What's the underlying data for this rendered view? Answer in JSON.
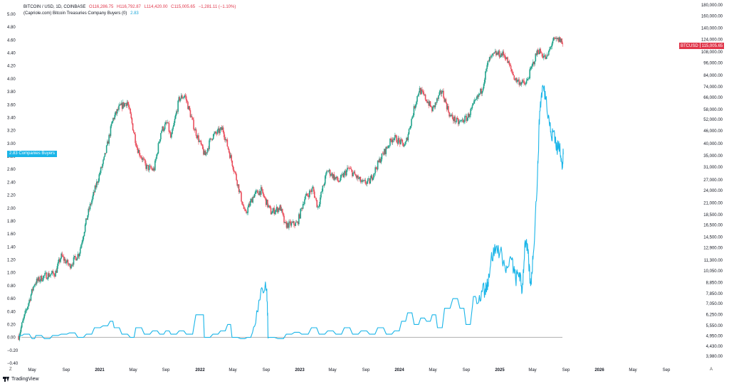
{
  "header": {
    "symbol": "BITCOIN / USD, 1D, COINBASE",
    "open": "O116,286.75",
    "high": "H116,792.87",
    "low": "L114,420.00",
    "close": "C115,005.65",
    "change": "−1,281.11 (−1.10%)",
    "indicator_name": "(Capriole.com) Bitcoin Treasuries Company Buyers (0)",
    "indicator_value": "2.83"
  },
  "tags": {
    "indicator_value": "2.83",
    "indicator_label": "Companies Buyers",
    "price_symbol": "BTCUSD",
    "price_value": "115,005.65"
  },
  "footer": {
    "brand": "TradingView"
  },
  "corners": {
    "left_bottom": "Z",
    "right_bottom": "A"
  },
  "colors": {
    "up": "#22a38c",
    "down": "#ea4d5c",
    "indicator": "#1ab5e8",
    "zero_line": "#999999"
  },
  "chart_data": {
    "type": "line",
    "x_labels": [
      "May",
      "Sep",
      "2021",
      "May",
      "Sep",
      "2022",
      "May",
      "Sep",
      "2023",
      "May",
      "Sep",
      "2024",
      "May",
      "Sep",
      "2025",
      "May",
      "Sep",
      "2026",
      "May",
      "Sep"
    ],
    "x_label_bold": [
      false,
      false,
      true,
      false,
      false,
      true,
      false,
      false,
      true,
      false,
      false,
      true,
      false,
      false,
      true,
      false,
      false,
      true,
      false,
      false
    ],
    "left_axis": {
      "label": "",
      "ylim": [
        -0.4,
        5.0
      ],
      "ticks": [
        "5.00",
        "4.80",
        "4.60",
        "4.40",
        "4.20",
        "4.00",
        "3.80",
        "3.60",
        "3.40",
        "3.20",
        "3.00",
        "2.80",
        "2.60",
        "2.40",
        "2.20",
        "2.00",
        "1.80",
        "1.60",
        "1.40",
        "1.20",
        "1.00",
        "0.80",
        "0.60",
        "0.40",
        "0.20",
        "0.00",
        "−0.20",
        "−0.40"
      ]
    },
    "right_axis": {
      "scale": "log",
      "ticks": [
        "180,000.00",
        "160,000.00",
        "140,000.00",
        "124,000.00",
        "108,000.00",
        "96,000.00",
        "84,000.00",
        "74,000.00",
        "66,000.00",
        "58,000.00",
        "52,000.00",
        "46,000.00",
        "40,000.00",
        "35,000.00",
        "31,000.00",
        "27,000.00",
        "24,000.00",
        "21,000.00",
        "18,500.00",
        "16,500.00",
        "14,500.00",
        "12,900.00",
        "11,300.00",
        "10,050.00",
        "8,850.00",
        "7,850.00",
        "7,050.00",
        "6,250.00",
        "5,550.00",
        "4,950.00",
        "4,430.00",
        "3,980.00"
      ]
    },
    "series": [
      {
        "name": "BTCUSD",
        "axis": "right",
        "style": "candles",
        "points": [
          [
            "2020-03-13",
            4950
          ],
          [
            "2020-04-15",
            6900
          ],
          [
            "2020-05-10",
            8800
          ],
          [
            "2020-06-15",
            9500
          ],
          [
            "2020-07-25",
            9800
          ],
          [
            "2020-08-15",
            11800
          ],
          [
            "2020-09-15",
            10600
          ],
          [
            "2020-10-20",
            12200
          ],
          [
            "2020-11-20",
            18500
          ],
          [
            "2020-12-25",
            26500
          ],
          [
            "2021-01-20",
            34000
          ],
          [
            "2021-02-20",
            52000
          ],
          [
            "2021-03-15",
            59000
          ],
          [
            "2021-04-14",
            63000
          ],
          [
            "2021-05-20",
            38000
          ],
          [
            "2021-06-22",
            31000
          ],
          [
            "2021-07-20",
            30000
          ],
          [
            "2021-08-15",
            46000
          ],
          [
            "2021-09-07",
            50000
          ],
          [
            "2021-09-20",
            42000
          ],
          [
            "2021-10-20",
            65000
          ],
          [
            "2021-11-10",
            67500
          ],
          [
            "2021-12-15",
            47000
          ],
          [
            "2022-01-22",
            35000
          ],
          [
            "2022-02-15",
            43000
          ],
          [
            "2022-03-28",
            47000
          ],
          [
            "2022-05-12",
            29000
          ],
          [
            "2022-06-18",
            18500
          ],
          [
            "2022-07-20",
            23000
          ],
          [
            "2022-08-15",
            24000
          ],
          [
            "2022-09-20",
            19000
          ],
          [
            "2022-10-25",
            20000
          ],
          [
            "2022-11-10",
            16500
          ],
          [
            "2022-12-25",
            16800
          ],
          [
            "2023-01-20",
            22000
          ],
          [
            "2023-02-20",
            24500
          ],
          [
            "2023-03-10",
            20000
          ],
          [
            "2023-04-14",
            30000
          ],
          [
            "2023-05-25",
            26500
          ],
          [
            "2023-06-30",
            30500
          ],
          [
            "2023-08-20",
            26000
          ],
          [
            "2023-09-15",
            26500
          ],
          [
            "2023-10-25",
            34000
          ],
          [
            "2023-12-10",
            43000
          ],
          [
            "2024-01-23",
            39000
          ],
          [
            "2024-02-28",
            61000
          ],
          [
            "2024-03-14",
            72000
          ],
          [
            "2024-04-15",
            63000
          ],
          [
            "2024-05-01",
            57500
          ],
          [
            "2024-06-05",
            71000
          ],
          [
            "2024-07-05",
            54000
          ],
          [
            "2024-08-05",
            50000
          ],
          [
            "2024-09-06",
            53000
          ],
          [
            "2024-10-29",
            72000
          ],
          [
            "2024-11-22",
            98000
          ],
          [
            "2024-12-17",
            106000
          ],
          [
            "2025-01-20",
            105000
          ],
          [
            "2025-02-28",
            80000
          ],
          [
            "2025-04-07",
            76000
          ],
          [
            "2025-05-22",
            111000
          ],
          [
            "2025-06-22",
            100000
          ],
          [
            "2025-07-14",
            122000
          ],
          [
            "2025-08-13",
            123500
          ],
          [
            "2025-08-22",
            115005.65
          ]
        ]
      },
      {
        "name": "Companies Buyers",
        "axis": "left",
        "style": "line",
        "points": [
          [
            "2020-03-13",
            0.03
          ],
          [
            "2020-04-01",
            0.05
          ],
          [
            "2020-05-01",
            -0.02
          ],
          [
            "2020-05-15",
            0.03
          ],
          [
            "2020-06-15",
            -0.02
          ],
          [
            "2020-07-15",
            0.03
          ],
          [
            "2020-08-15",
            0.05
          ],
          [
            "2020-09-15",
            0.07
          ],
          [
            "2020-10-15",
            0.0
          ],
          [
            "2020-11-15",
            0.05
          ],
          [
            "2020-12-15",
            0.15
          ],
          [
            "2021-01-15",
            0.18
          ],
          [
            "2021-02-10",
            0.25
          ],
          [
            "2021-02-25",
            0.15
          ],
          [
            "2021-03-25",
            0.05
          ],
          [
            "2021-04-25",
            0.0
          ],
          [
            "2021-05-15",
            0.15
          ],
          [
            "2021-06-15",
            0.05
          ],
          [
            "2021-07-15",
            0.1
          ],
          [
            "2021-08-10",
            0.05
          ],
          [
            "2021-09-01",
            0.1
          ],
          [
            "2021-09-20",
            0.05
          ],
          [
            "2021-10-20",
            0.1
          ],
          [
            "2021-11-15",
            0.05
          ],
          [
            "2021-12-20",
            0.35
          ],
          [
            "2022-01-10",
            0.35
          ],
          [
            "2022-01-20",
            0.0
          ],
          [
            "2022-02-20",
            0.05
          ],
          [
            "2022-03-20",
            0.1
          ],
          [
            "2022-04-15",
            0.2
          ],
          [
            "2022-05-01",
            0.0
          ],
          [
            "2022-06-01",
            -0.02
          ],
          [
            "2022-06-25",
            0.0
          ],
          [
            "2022-07-15",
            0.08
          ],
          [
            "2022-08-15",
            0.75
          ],
          [
            "2022-09-05",
            0.75
          ],
          [
            "2022-09-10",
            0.0
          ],
          [
            "2022-10-15",
            -0.02
          ],
          [
            "2022-11-15",
            0.05
          ],
          [
            "2022-12-15",
            0.08
          ],
          [
            "2023-01-10",
            0.05
          ],
          [
            "2023-02-15",
            0.15
          ],
          [
            "2023-03-15",
            0.05
          ],
          [
            "2023-04-15",
            0.1
          ],
          [
            "2023-05-15",
            0.05
          ],
          [
            "2023-06-15",
            0.15
          ],
          [
            "2023-07-15",
            0.05
          ],
          [
            "2023-08-15",
            0.1
          ],
          [
            "2023-09-15",
            0.05
          ],
          [
            "2023-10-15",
            0.15
          ],
          [
            "2023-11-15",
            0.05
          ],
          [
            "2023-12-15",
            0.1
          ],
          [
            "2024-01-10",
            0.25
          ],
          [
            "2024-02-01",
            0.38
          ],
          [
            "2024-02-25",
            0.2
          ],
          [
            "2024-03-20",
            0.3
          ],
          [
            "2024-04-10",
            0.25
          ],
          [
            "2024-05-01",
            0.35
          ],
          [
            "2024-05-20",
            0.15
          ],
          [
            "2024-06-15",
            0.45
          ],
          [
            "2024-07-15",
            0.6
          ],
          [
            "2024-08-10",
            0.45
          ],
          [
            "2024-09-01",
            0.2
          ],
          [
            "2024-09-25",
            0.5
          ],
          [
            "2024-10-20",
            0.65
          ],
          [
            "2024-11-10",
            0.75
          ],
          [
            "2024-11-20",
            0.85
          ],
          [
            "2024-12-01",
            1.2
          ],
          [
            "2024-12-20",
            1.4
          ],
          [
            "2025-01-10",
            1.3
          ],
          [
            "2025-01-25",
            1.0
          ],
          [
            "2025-02-15",
            1.2
          ],
          [
            "2025-03-01",
            0.9
          ],
          [
            "2025-03-15",
            1.0
          ],
          [
            "2025-03-25",
            0.7
          ],
          [
            "2025-04-05",
            1.5
          ],
          [
            "2025-04-15",
            1.3
          ],
          [
            "2025-04-25",
            0.8
          ],
          [
            "2025-05-05",
            1.3
          ],
          [
            "2025-05-20",
            2.5
          ],
          [
            "2025-05-28",
            3.5
          ],
          [
            "2025-06-08",
            3.9
          ],
          [
            "2025-06-20",
            3.7
          ],
          [
            "2025-07-01",
            3.4
          ],
          [
            "2025-07-10",
            3.1
          ],
          [
            "2025-07-20",
            3.2
          ],
          [
            "2025-07-30",
            2.9
          ],
          [
            "2025-08-10",
            3.0
          ],
          [
            "2025-08-18",
            2.6
          ],
          [
            "2025-08-22",
            2.83
          ]
        ]
      }
    ],
    "zero_line": 0.0
  }
}
